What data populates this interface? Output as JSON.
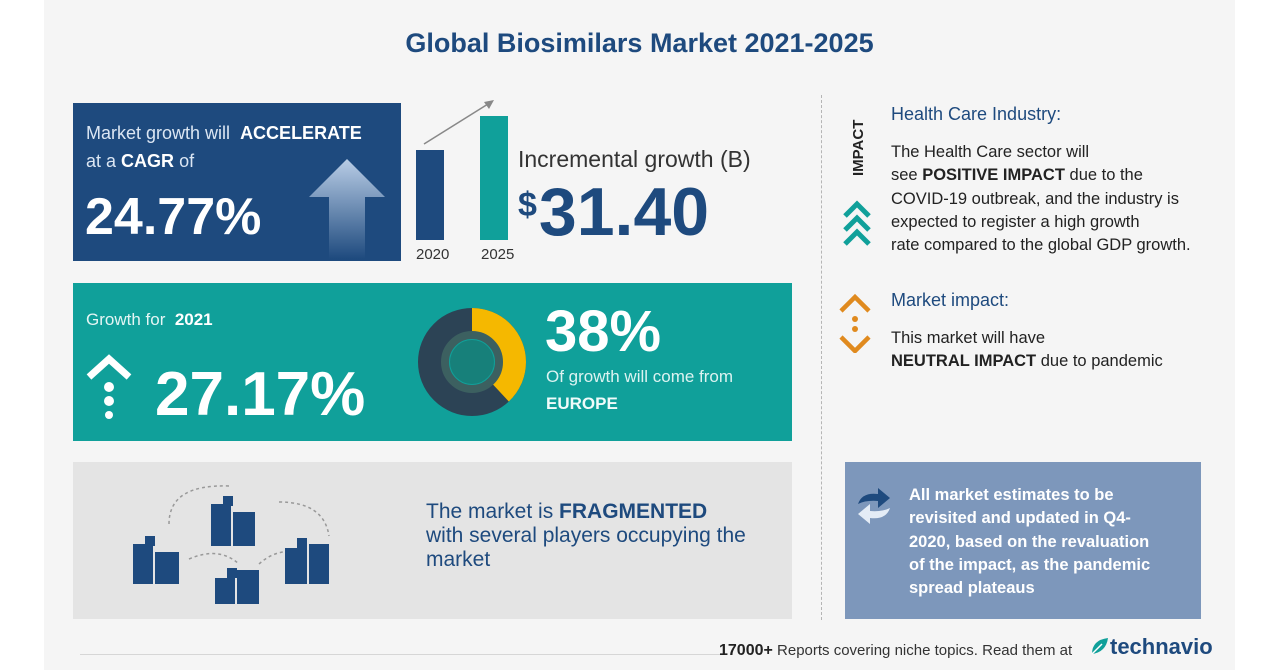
{
  "title": "Global Biosimilars Market 2021-2025",
  "cagr": {
    "line1_text": "Market growth will",
    "line1_bold": "ACCELERATE",
    "line2_text": "at a",
    "line2_bold": "CAGR",
    "line2_tail": "of",
    "value": "24.77%"
  },
  "incremental": {
    "year_start": "2020",
    "year_end": "2025",
    "label": "Incremental growth (B)",
    "currency": "$",
    "value": "31.40"
  },
  "growth": {
    "label": "Growth for",
    "year": "2021",
    "value": "27.17%",
    "region_share": "38%",
    "region_share_value": 0.38,
    "region_text": "Of growth will come from",
    "region": "EUROPE"
  },
  "market_structure": {
    "prefix": "The market is",
    "bold": "FRAGMENTED",
    "line2": "with several players occupying the",
    "line3": "market"
  },
  "impact_label": "IMPACT",
  "health_care": {
    "title": "Health Care Industry:",
    "line1": "The Health Care sector will",
    "line2_pre": "see",
    "line2_bold": "POSITIVE IMPACT",
    "line2_post": "due to the",
    "line3": "COVID-19 outbreak, and the industry is",
    "line4": "expected to register a high growth",
    "line5": "rate compared to the global GDP growth."
  },
  "market_impact": {
    "title": "Market impact:",
    "line1": "This market will have",
    "line2_bold": "NEUTRAL IMPACT",
    "line2_post": "due to pandemic"
  },
  "estimates_note": {
    "line1": "All market estimates to be",
    "line2": "revisited and updated in Q4-",
    "line3": "2020, based on the revaluation",
    "line4": "of the impact, as the pandemic",
    "line5": "spread plateaus"
  },
  "footer": {
    "count": "17000+",
    "text": "Reports covering niche topics. Read them at",
    "logo": "technavio"
  },
  "colors": {
    "navy": "#1e4a7e",
    "teal": "#10a09a",
    "slate": "#7d97bb",
    "gold": "#f5b800",
    "orange": "#e08a1e"
  }
}
